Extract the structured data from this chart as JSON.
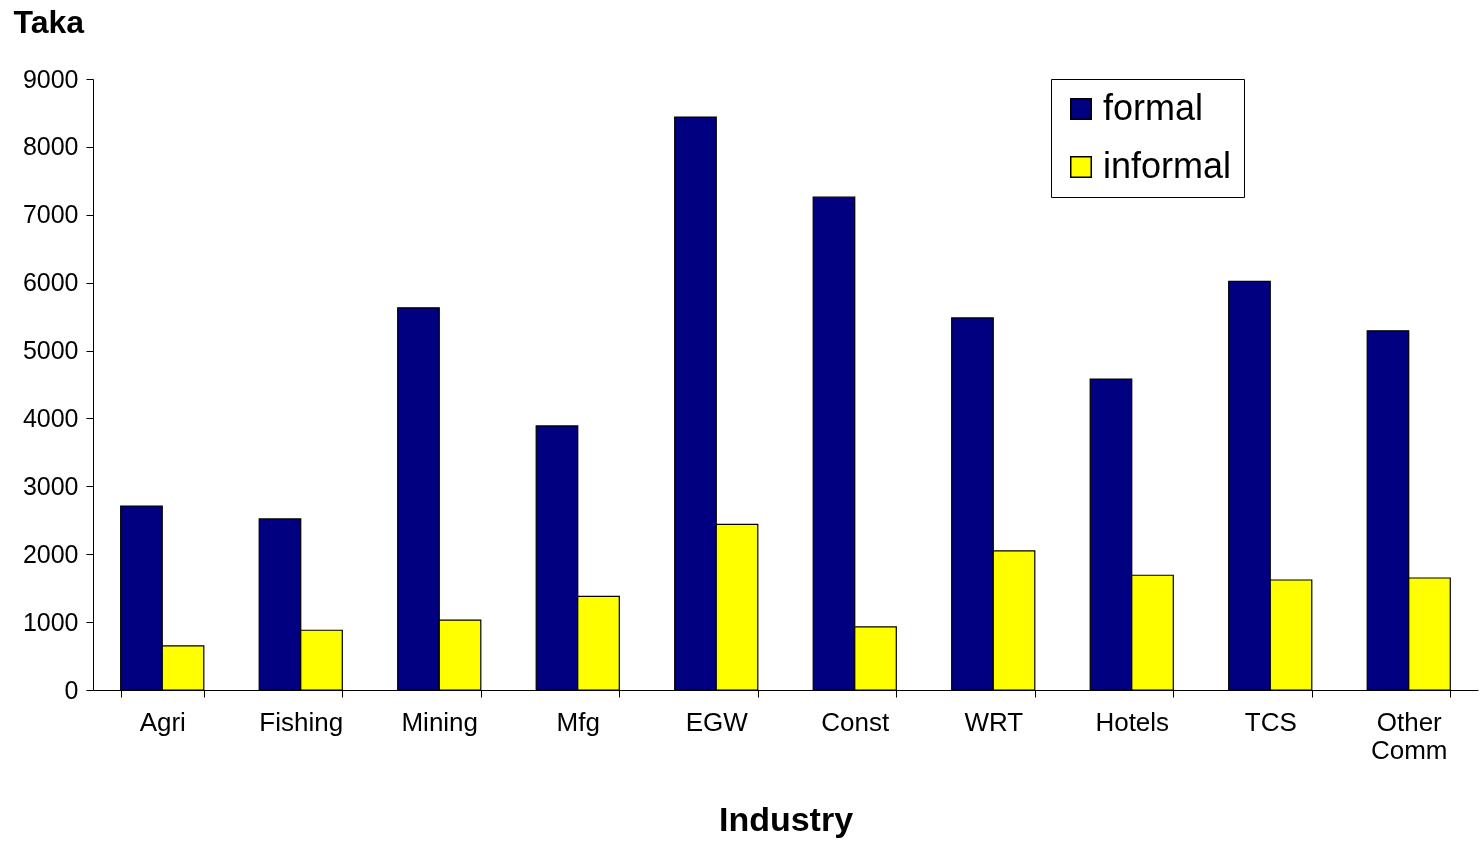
{
  "chart_data": {
    "type": "bar",
    "xlabel": "Industry",
    "ylabel": "Taka",
    "categories": [
      "Agri",
      "Fishing",
      "Mining",
      "Mfg",
      "EGW",
      "Const",
      "WRT",
      "Hotels",
      "TCS",
      "Other Comm"
    ],
    "series": [
      {
        "name": "formal",
        "color": "#000080",
        "values": [
          2710,
          2520,
          5630,
          3890,
          8440,
          7260,
          5480,
          4580,
          6020,
          5290
        ]
      },
      {
        "name": "informal",
        "color": "#ffff00",
        "values": [
          650,
          880,
          1030,
          1380,
          2440,
          930,
          2050,
          1690,
          1620,
          1650
        ]
      }
    ],
    "ylim": [
      0,
      9000
    ],
    "yticks": [
      0,
      1000,
      2000,
      3000,
      4000,
      5000,
      6000,
      7000,
      8000,
      9000
    ],
    "grid": false,
    "legend": "top right"
  }
}
